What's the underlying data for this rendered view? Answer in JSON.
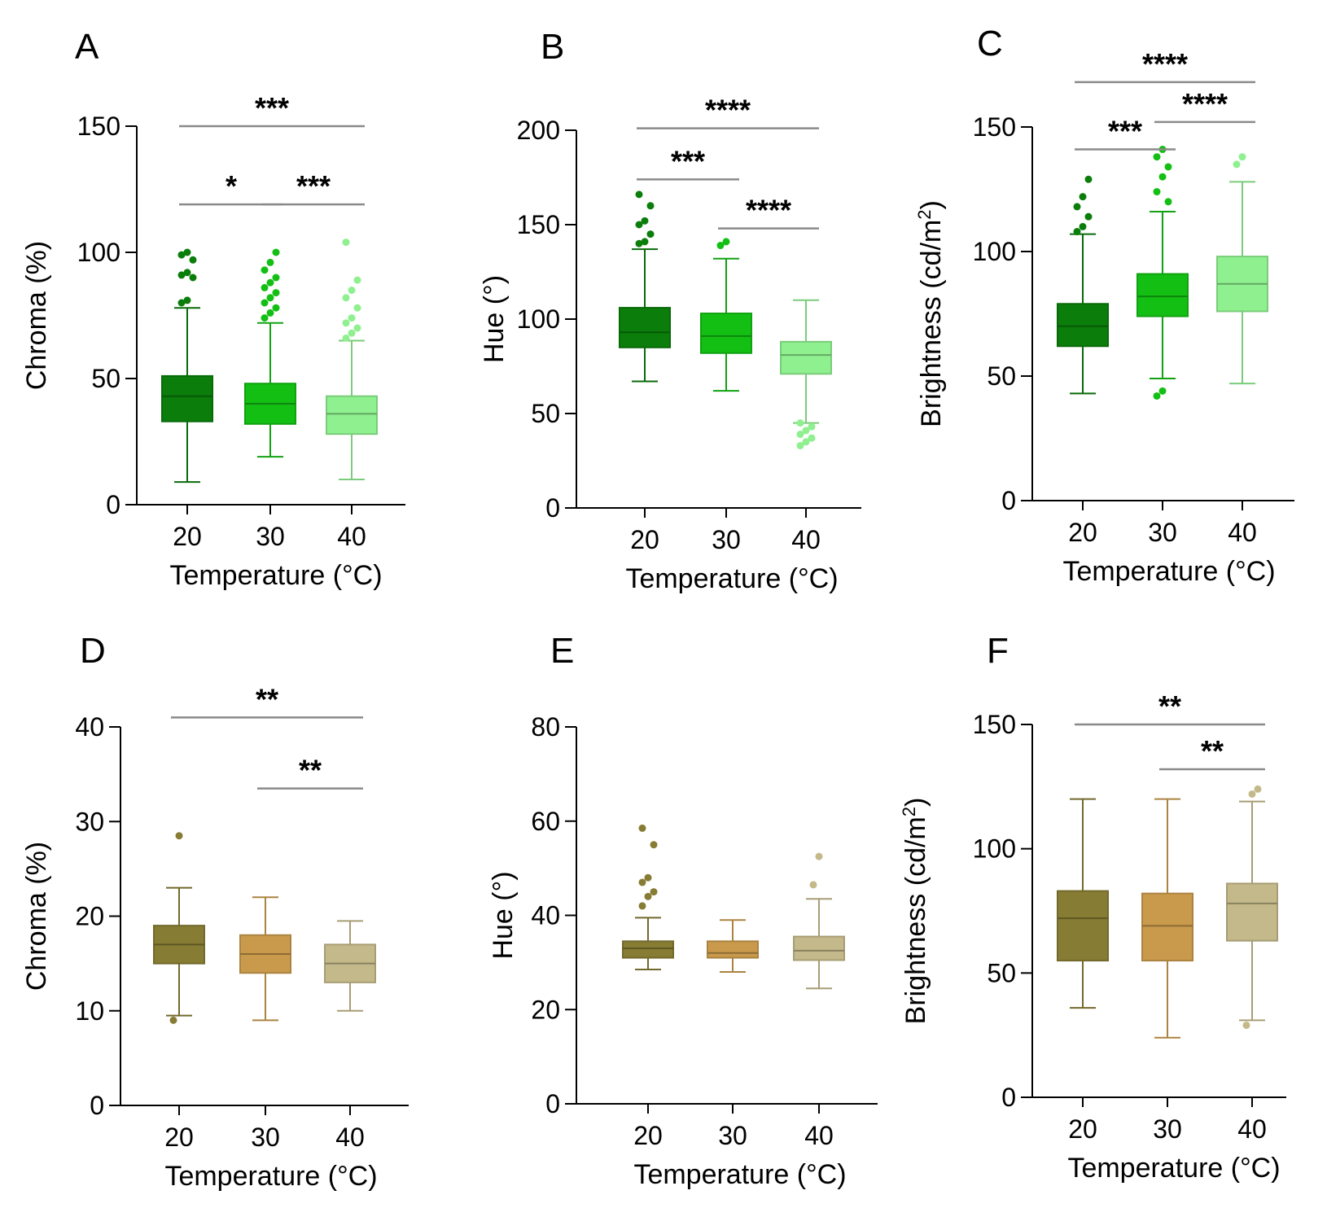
{
  "xlabel": "Temperature (°C)",
  "chart_data": [
    {
      "letter": "A",
      "type": "box",
      "ylabel": "Chroma (%)",
      "categories": [
        "20",
        "30",
        "40"
      ],
      "ylim": [
        0,
        150
      ],
      "yticks": [
        "0",
        "50",
        "100",
        "150"
      ],
      "colors": [
        "#0a7d0a",
        "#13bf13",
        "#8ff08f"
      ],
      "boxes": [
        {
          "min": 9,
          "q1": 33,
          "median": 43,
          "q3": 51,
          "max": 78,
          "outliers": [
            80,
            81,
            90,
            91,
            92,
            97,
            99,
            100
          ]
        },
        {
          "min": 19,
          "q1": 32,
          "median": 40,
          "q3": 48,
          "max": 72,
          "outliers": [
            74,
            76,
            78,
            80,
            82,
            84,
            86,
            88,
            90,
            93,
            96,
            100
          ]
        },
        {
          "min": 10,
          "q1": 28,
          "median": 36,
          "q3": 43,
          "max": 65,
          "outliers": [
            66,
            68,
            70,
            72,
            74,
            78,
            82,
            85,
            89,
            104
          ]
        }
      ],
      "significance": [
        {
          "from": 0,
          "to": 2,
          "y": 150,
          "label": "***"
        },
        {
          "from": 0,
          "to": 1,
          "y": 119,
          "label": "*"
        },
        {
          "from": 1,
          "to": 2,
          "y": 119,
          "label": "***"
        }
      ]
    },
    {
      "letter": "B",
      "type": "box",
      "ylabel": "Hue (°)",
      "categories": [
        "20",
        "30",
        "40"
      ],
      "ylim": [
        0,
        200
      ],
      "yticks": [
        "0",
        "50",
        "100",
        "150",
        "200"
      ],
      "colors": [
        "#0a7d0a",
        "#13bf13",
        "#8ff08f"
      ],
      "boxes": [
        {
          "min": 67,
          "q1": 85,
          "median": 93,
          "q3": 106,
          "max": 137,
          "outliers": [
            140,
            141,
            145,
            150,
            152,
            160,
            166
          ]
        },
        {
          "min": 62,
          "q1": 82,
          "median": 91,
          "q3": 103,
          "max": 132,
          "outliers": [
            139,
            141
          ]
        },
        {
          "min": 45,
          "q1": 71,
          "median": 81,
          "q3": 88,
          "max": 110,
          "outliers": [
            33,
            35,
            37,
            39,
            41,
            43,
            45
          ]
        }
      ],
      "significance": [
        {
          "from": 0,
          "to": 2,
          "y": 201,
          "label": "****"
        },
        {
          "from": 0,
          "to": 1,
          "y": 174,
          "label": "***"
        },
        {
          "from": 1,
          "to": 2,
          "y": 148,
          "label": "****"
        }
      ]
    },
    {
      "letter": "C",
      "type": "box",
      "ylabel": "Brightness (cd/m2)",
      "categories": [
        "20",
        "30",
        "40"
      ],
      "ylim": [
        0,
        150
      ],
      "yticks": [
        "0",
        "50",
        "100",
        "150"
      ],
      "colors": [
        "#0a7d0a",
        "#13bf13",
        "#8ff08f"
      ],
      "boxes": [
        {
          "min": 43,
          "q1": 62,
          "median": 70,
          "q3": 79,
          "max": 107,
          "outliers": [
            108,
            110,
            114,
            118,
            122,
            129
          ]
        },
        {
          "min": 49,
          "q1": 74,
          "median": 82,
          "q3": 91,
          "max": 116,
          "outliers": [
            42,
            44,
            120,
            124,
            130,
            134,
            138,
            141
          ]
        },
        {
          "min": 47,
          "q1": 76,
          "median": 87,
          "q3": 98,
          "max": 128,
          "outliers": [
            135,
            138
          ]
        }
      ],
      "significance": [
        {
          "from": 0,
          "to": 2,
          "y": 168,
          "label": "****"
        },
        {
          "from": 0,
          "to": 1,
          "y": 141,
          "label": "***"
        },
        {
          "from": 1,
          "to": 2,
          "y": 152,
          "label": "****"
        }
      ]
    },
    {
      "letter": "D",
      "type": "box",
      "ylabel": "Chroma (%)",
      "categories": [
        "20",
        "30",
        "40"
      ],
      "ylim": [
        0,
        40
      ],
      "yticks": [
        "0",
        "10",
        "20",
        "30",
        "40"
      ],
      "colors": [
        "#867c34",
        "#c99a4c",
        "#c4b98a"
      ],
      "boxes": [
        {
          "min": 9.5,
          "q1": 15,
          "median": 17,
          "q3": 19,
          "max": 23,
          "outliers": [
            9,
            28.5
          ]
        },
        {
          "min": 9,
          "q1": 14,
          "median": 16,
          "q3": 18,
          "max": 22,
          "outliers": []
        },
        {
          "min": 10,
          "q1": 13,
          "median": 15,
          "q3": 17,
          "max": 19.5,
          "outliers": []
        }
      ],
      "significance": [
        {
          "from": 0,
          "to": 2,
          "y": 41,
          "label": "**"
        },
        {
          "from": 1,
          "to": 2,
          "y": 33.5,
          "label": "**"
        }
      ]
    },
    {
      "letter": "E",
      "type": "box",
      "ylabel": "Hue (°)",
      "categories": [
        "20",
        "30",
        "40"
      ],
      "ylim": [
        0,
        80
      ],
      "yticks": [
        "0",
        "20",
        "40",
        "60",
        "80"
      ],
      "colors": [
        "#867c34",
        "#c99a4c",
        "#c4b98a"
      ],
      "boxes": [
        {
          "min": 28.5,
          "q1": 31,
          "median": 33,
          "q3": 34.5,
          "max": 39.5,
          "outliers": [
            42,
            44,
            45,
            47,
            48,
            55,
            58.5
          ]
        },
        {
          "min": 28,
          "q1": 31,
          "median": 32,
          "q3": 34.5,
          "max": 39,
          "outliers": []
        },
        {
          "min": 24.5,
          "q1": 30.5,
          "median": 32.5,
          "q3": 35.5,
          "max": 43.5,
          "outliers": [
            46.5,
            52.5
          ]
        }
      ],
      "significance": []
    },
    {
      "letter": "F",
      "type": "box",
      "ylabel": "Brightness (cd/m2)",
      "categories": [
        "20",
        "30",
        "40"
      ],
      "ylim": [
        0,
        150
      ],
      "yticks": [
        "0",
        "50",
        "100",
        "150"
      ],
      "colors": [
        "#867c34",
        "#c99a4c",
        "#c4b98a"
      ],
      "boxes": [
        {
          "min": 36,
          "q1": 55,
          "median": 72,
          "q3": 83,
          "max": 120,
          "outliers": []
        },
        {
          "min": 24,
          "q1": 55,
          "median": 69,
          "q3": 82,
          "max": 120,
          "outliers": []
        },
        {
          "min": 31,
          "q1": 63,
          "median": 78,
          "q3": 86,
          "max": 119,
          "outliers": [
            29,
            122,
            124
          ]
        }
      ],
      "significance": [
        {
          "from": 0,
          "to": 2,
          "y": 150,
          "label": "**"
        },
        {
          "from": 1,
          "to": 2,
          "y": 132,
          "label": "**"
        }
      ]
    }
  ]
}
